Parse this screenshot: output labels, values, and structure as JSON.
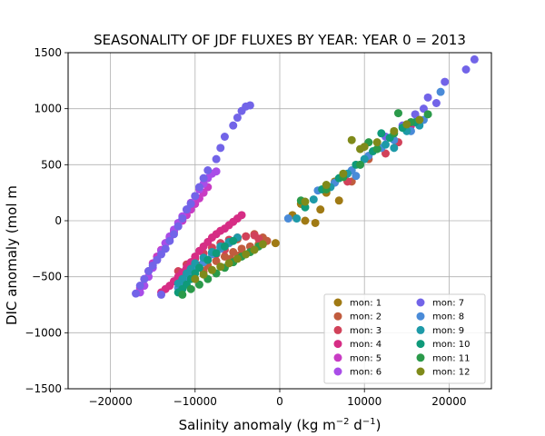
{
  "chart_data": {
    "type": "scatter",
    "title": "SEASONALITY OF JDF FLUXES BY YEAR: YEAR 0 = 2013",
    "xlabel_main": "Salinity anomaly (kg m",
    "xlabel_sup1": "−2",
    "xlabel_mid": " d",
    "xlabel_sup2": "−1",
    "xlabel_end": ")",
    "ylabel": "DIC anomaly (mol m",
    "xlim": [
      -25000,
      25000
    ],
    "ylim": [
      -1500,
      1500
    ],
    "xticks": [
      -20000,
      -10000,
      0,
      10000,
      20000
    ],
    "xtick_labels": [
      "−20000",
      "−10000",
      "0",
      "10000",
      "20000"
    ],
    "yticks": [
      -1500,
      -1000,
      -500,
      0,
      500,
      1000,
      1500
    ],
    "ytick_labels": [
      "−1500",
      "−1000",
      "−500",
      "0",
      "500",
      "1000",
      "1500"
    ],
    "grid": true,
    "legend_position": "lower-right",
    "series": [
      {
        "name": "mon: 1",
        "color": "#a07a14",
        "points": [
          [
            3000,
            0
          ],
          [
            4200,
            -20
          ],
          [
            4800,
            100
          ],
          [
            5500,
            250
          ],
          [
            6500,
            350
          ],
          [
            7000,
            180
          ],
          [
            -500,
            -200
          ],
          [
            1500,
            50
          ],
          [
            2500,
            150
          ]
        ]
      },
      {
        "name": "mon: 2",
        "color": "#c15c3e",
        "points": [
          [
            -1500,
            -180
          ],
          [
            -2500,
            -210
          ],
          [
            -3500,
            -230
          ],
          [
            -4500,
            -250
          ],
          [
            -5500,
            -280
          ],
          [
            -6500,
            -320
          ],
          [
            -7500,
            -360
          ],
          [
            -8500,
            -400
          ],
          [
            -3000,
            -120
          ],
          [
            -4000,
            -140
          ],
          [
            -5000,
            -165
          ],
          [
            -6000,
            -200
          ],
          [
            -7000,
            -240
          ],
          [
            -8000,
            -290
          ],
          [
            -2000,
            -150
          ],
          [
            -4800,
            -310
          ],
          [
            -5800,
            -340
          ],
          [
            -9000,
            -450
          ],
          [
            8500,
            350
          ],
          [
            10500,
            550
          ]
        ]
      },
      {
        "name": "mon: 3",
        "color": "#d1425a",
        "points": [
          [
            -5000,
            -150
          ],
          [
            -6000,
            -170
          ],
          [
            -7000,
            -200
          ],
          [
            -8000,
            -240
          ],
          [
            -9000,
            -290
          ],
          [
            -10000,
            -340
          ],
          [
            -11000,
            -390
          ],
          [
            -4000,
            -140
          ],
          [
            -3000,
            -130
          ],
          [
            -2500,
            -160
          ],
          [
            -6500,
            -260
          ],
          [
            -7500,
            -300
          ],
          [
            -8500,
            -350
          ],
          [
            -9500,
            -400
          ],
          [
            8000,
            350
          ],
          [
            12500,
            600
          ],
          [
            14000,
            700
          ],
          [
            -12000,
            -450
          ]
        ]
      },
      {
        "name": "mon: 4",
        "color": "#d62d85",
        "points": [
          [
            -4500,
            50
          ],
          [
            -5000,
            20
          ],
          [
            -5500,
            -10
          ],
          [
            -6000,
            -40
          ],
          [
            -6500,
            -70
          ],
          [
            -7000,
            -90
          ],
          [
            -7500,
            -120
          ],
          [
            -8000,
            -150
          ],
          [
            -8500,
            -190
          ],
          [
            -9000,
            -230
          ],
          [
            -9500,
            -270
          ],
          [
            -10000,
            -320
          ],
          [
            -10500,
            -370
          ],
          [
            -11000,
            -420
          ],
          [
            -11500,
            -460
          ],
          [
            -12000,
            -500
          ],
          [
            -12500,
            -540
          ],
          [
            -13000,
            -580
          ],
          [
            -13500,
            -610
          ],
          [
            -14000,
            -640
          ],
          [
            15500,
            850
          ],
          [
            16500,
            900
          ]
        ]
      },
      {
        "name": "mon: 5",
        "color": "#c83cc4",
        "points": [
          [
            -8500,
            300
          ],
          [
            -9000,
            250
          ],
          [
            -9500,
            200
          ],
          [
            -10000,
            150
          ],
          [
            -10500,
            100
          ],
          [
            -11000,
            50
          ],
          [
            -11500,
            0
          ],
          [
            -12000,
            -50
          ],
          [
            -12500,
            -100
          ],
          [
            -13000,
            -150
          ],
          [
            -13500,
            -200
          ],
          [
            -14000,
            -260
          ],
          [
            -14500,
            -320
          ],
          [
            -15000,
            -380
          ],
          [
            -15500,
            -450
          ],
          [
            -16000,
            -520
          ],
          [
            -16500,
            -600
          ]
        ]
      },
      {
        "name": "mon: 6",
        "color": "#a94de8",
        "points": [
          [
            -7500,
            440
          ],
          [
            -8000,
            420
          ],
          [
            -8500,
            380
          ],
          [
            -9000,
            330
          ],
          [
            -9500,
            280
          ],
          [
            -10000,
            220
          ],
          [
            -10500,
            160
          ],
          [
            -11000,
            100
          ],
          [
            -11500,
            40
          ],
          [
            -12000,
            -20
          ],
          [
            -12500,
            -80
          ],
          [
            -13000,
            -140
          ],
          [
            -13500,
            -200
          ],
          [
            -14000,
            -270
          ],
          [
            -14500,
            -350
          ],
          [
            -15000,
            -420
          ],
          [
            -15500,
            -500
          ],
          [
            -16000,
            -580
          ],
          [
            -16500,
            -640
          ]
        ]
      },
      {
        "name": "mon: 7",
        "color": "#7264e8",
        "points": [
          [
            -3500,
            1030
          ],
          [
            -4000,
            1020
          ],
          [
            -4500,
            980
          ],
          [
            -5000,
            920
          ],
          [
            -5500,
            850
          ],
          [
            -6500,
            750
          ],
          [
            -7000,
            650
          ],
          [
            -7500,
            550
          ],
          [
            -8500,
            450
          ],
          [
            -9000,
            380
          ],
          [
            -9500,
            300
          ],
          [
            -10000,
            220
          ],
          [
            -10500,
            150
          ],
          [
            -11000,
            100
          ],
          [
            -11500,
            20
          ],
          [
            -12000,
            -50
          ],
          [
            -12500,
            -120
          ],
          [
            -13000,
            -180
          ],
          [
            -13500,
            -250
          ],
          [
            -14000,
            -300
          ],
          [
            -14500,
            -350
          ],
          [
            -15000,
            -400
          ],
          [
            -15500,
            -450
          ],
          [
            -16000,
            -520
          ],
          [
            -16500,
            -580
          ],
          [
            -17000,
            -650
          ],
          [
            -14000,
            -660
          ],
          [
            23000,
            1440
          ],
          [
            22000,
            1350
          ],
          [
            19500,
            1240
          ],
          [
            17500,
            1100
          ],
          [
            18500,
            1050
          ],
          [
            16000,
            950
          ],
          [
            12500,
            750
          ],
          [
            14500,
            850
          ],
          [
            17000,
            1000
          ]
        ]
      },
      {
        "name": "mon: 8",
        "color": "#4a8bd8",
        "points": [
          [
            -6000,
            -200
          ],
          [
            -7000,
            -250
          ],
          [
            -8000,
            -300
          ],
          [
            -9000,
            -370
          ],
          [
            -10000,
            -430
          ],
          [
            -10500,
            -480
          ],
          [
            -11000,
            -530
          ],
          [
            -11500,
            -580
          ],
          [
            -12000,
            -600
          ],
          [
            1000,
            20
          ],
          [
            4500,
            270
          ],
          [
            6500,
            340
          ],
          [
            8500,
            450
          ],
          [
            9500,
            500
          ],
          [
            10500,
            580
          ],
          [
            12000,
            650
          ],
          [
            13500,
            720
          ],
          [
            15500,
            800
          ],
          [
            17000,
            900
          ],
          [
            19000,
            1150
          ],
          [
            9000,
            400
          ]
        ]
      },
      {
        "name": "mon: 9",
        "color": "#1e9aa8",
        "points": [
          [
            -5000,
            -150
          ],
          [
            -6000,
            -190
          ],
          [
            -7000,
            -230
          ],
          [
            -8000,
            -280
          ],
          [
            -9000,
            -330
          ],
          [
            -10000,
            -380
          ],
          [
            -10500,
            -430
          ],
          [
            -11000,
            -470
          ],
          [
            -11500,
            -520
          ],
          [
            -12000,
            -560
          ],
          [
            2000,
            20
          ],
          [
            4000,
            190
          ],
          [
            6000,
            300
          ],
          [
            8000,
            420
          ],
          [
            10000,
            550
          ],
          [
            12500,
            680
          ],
          [
            13500,
            650
          ],
          [
            15000,
            800
          ],
          [
            16500,
            850
          ]
        ]
      },
      {
        "name": "mon: 10",
        "color": "#0f9a7a",
        "points": [
          [
            -5500,
            -180
          ],
          [
            -6500,
            -230
          ],
          [
            -7500,
            -290
          ],
          [
            -8500,
            -350
          ],
          [
            -9500,
            -420
          ],
          [
            -10000,
            -470
          ],
          [
            -10500,
            -520
          ],
          [
            -11000,
            -570
          ],
          [
            -11500,
            -610
          ],
          [
            -12000,
            -640
          ],
          [
            5000,
            280
          ],
          [
            7000,
            380
          ],
          [
            9000,
            500
          ],
          [
            11000,
            620
          ],
          [
            13000,
            740
          ],
          [
            14500,
            830
          ],
          [
            16000,
            880
          ],
          [
            12000,
            780
          ],
          [
            3000,
            120
          ]
        ]
      },
      {
        "name": "mon: 11",
        "color": "#2b9a4a",
        "points": [
          [
            -2500,
            -230
          ],
          [
            -3500,
            -280
          ],
          [
            -4500,
            -320
          ],
          [
            -5500,
            -370
          ],
          [
            -6500,
            -420
          ],
          [
            -7500,
            -470
          ],
          [
            -8500,
            -520
          ],
          [
            -9500,
            -570
          ],
          [
            -10500,
            -610
          ],
          [
            -11500,
            -660
          ],
          [
            2500,
            180
          ],
          [
            5500,
            280
          ],
          [
            7500,
            390
          ],
          [
            9500,
            500
          ],
          [
            11500,
            640
          ],
          [
            13500,
            780
          ],
          [
            15500,
            880
          ],
          [
            17500,
            950
          ],
          [
            14000,
            960
          ],
          [
            10500,
            700
          ]
        ]
      },
      {
        "name": "mon: 12",
        "color": "#7f8a1a",
        "points": [
          [
            -2000,
            -210
          ],
          [
            -3000,
            -260
          ],
          [
            -4000,
            -300
          ],
          [
            -5000,
            -340
          ],
          [
            -6000,
            -380
          ],
          [
            -7000,
            -410
          ],
          [
            -8000,
            -440
          ],
          [
            -9000,
            -480
          ],
          [
            -10000,
            -520
          ],
          [
            3000,
            170
          ],
          [
            5500,
            320
          ],
          [
            7500,
            420
          ],
          [
            9500,
            640
          ],
          [
            11500,
            700
          ],
          [
            13500,
            800
          ],
          [
            15000,
            860
          ],
          [
            16500,
            900
          ],
          [
            10000,
            660
          ],
          [
            8500,
            720
          ]
        ]
      }
    ]
  }
}
